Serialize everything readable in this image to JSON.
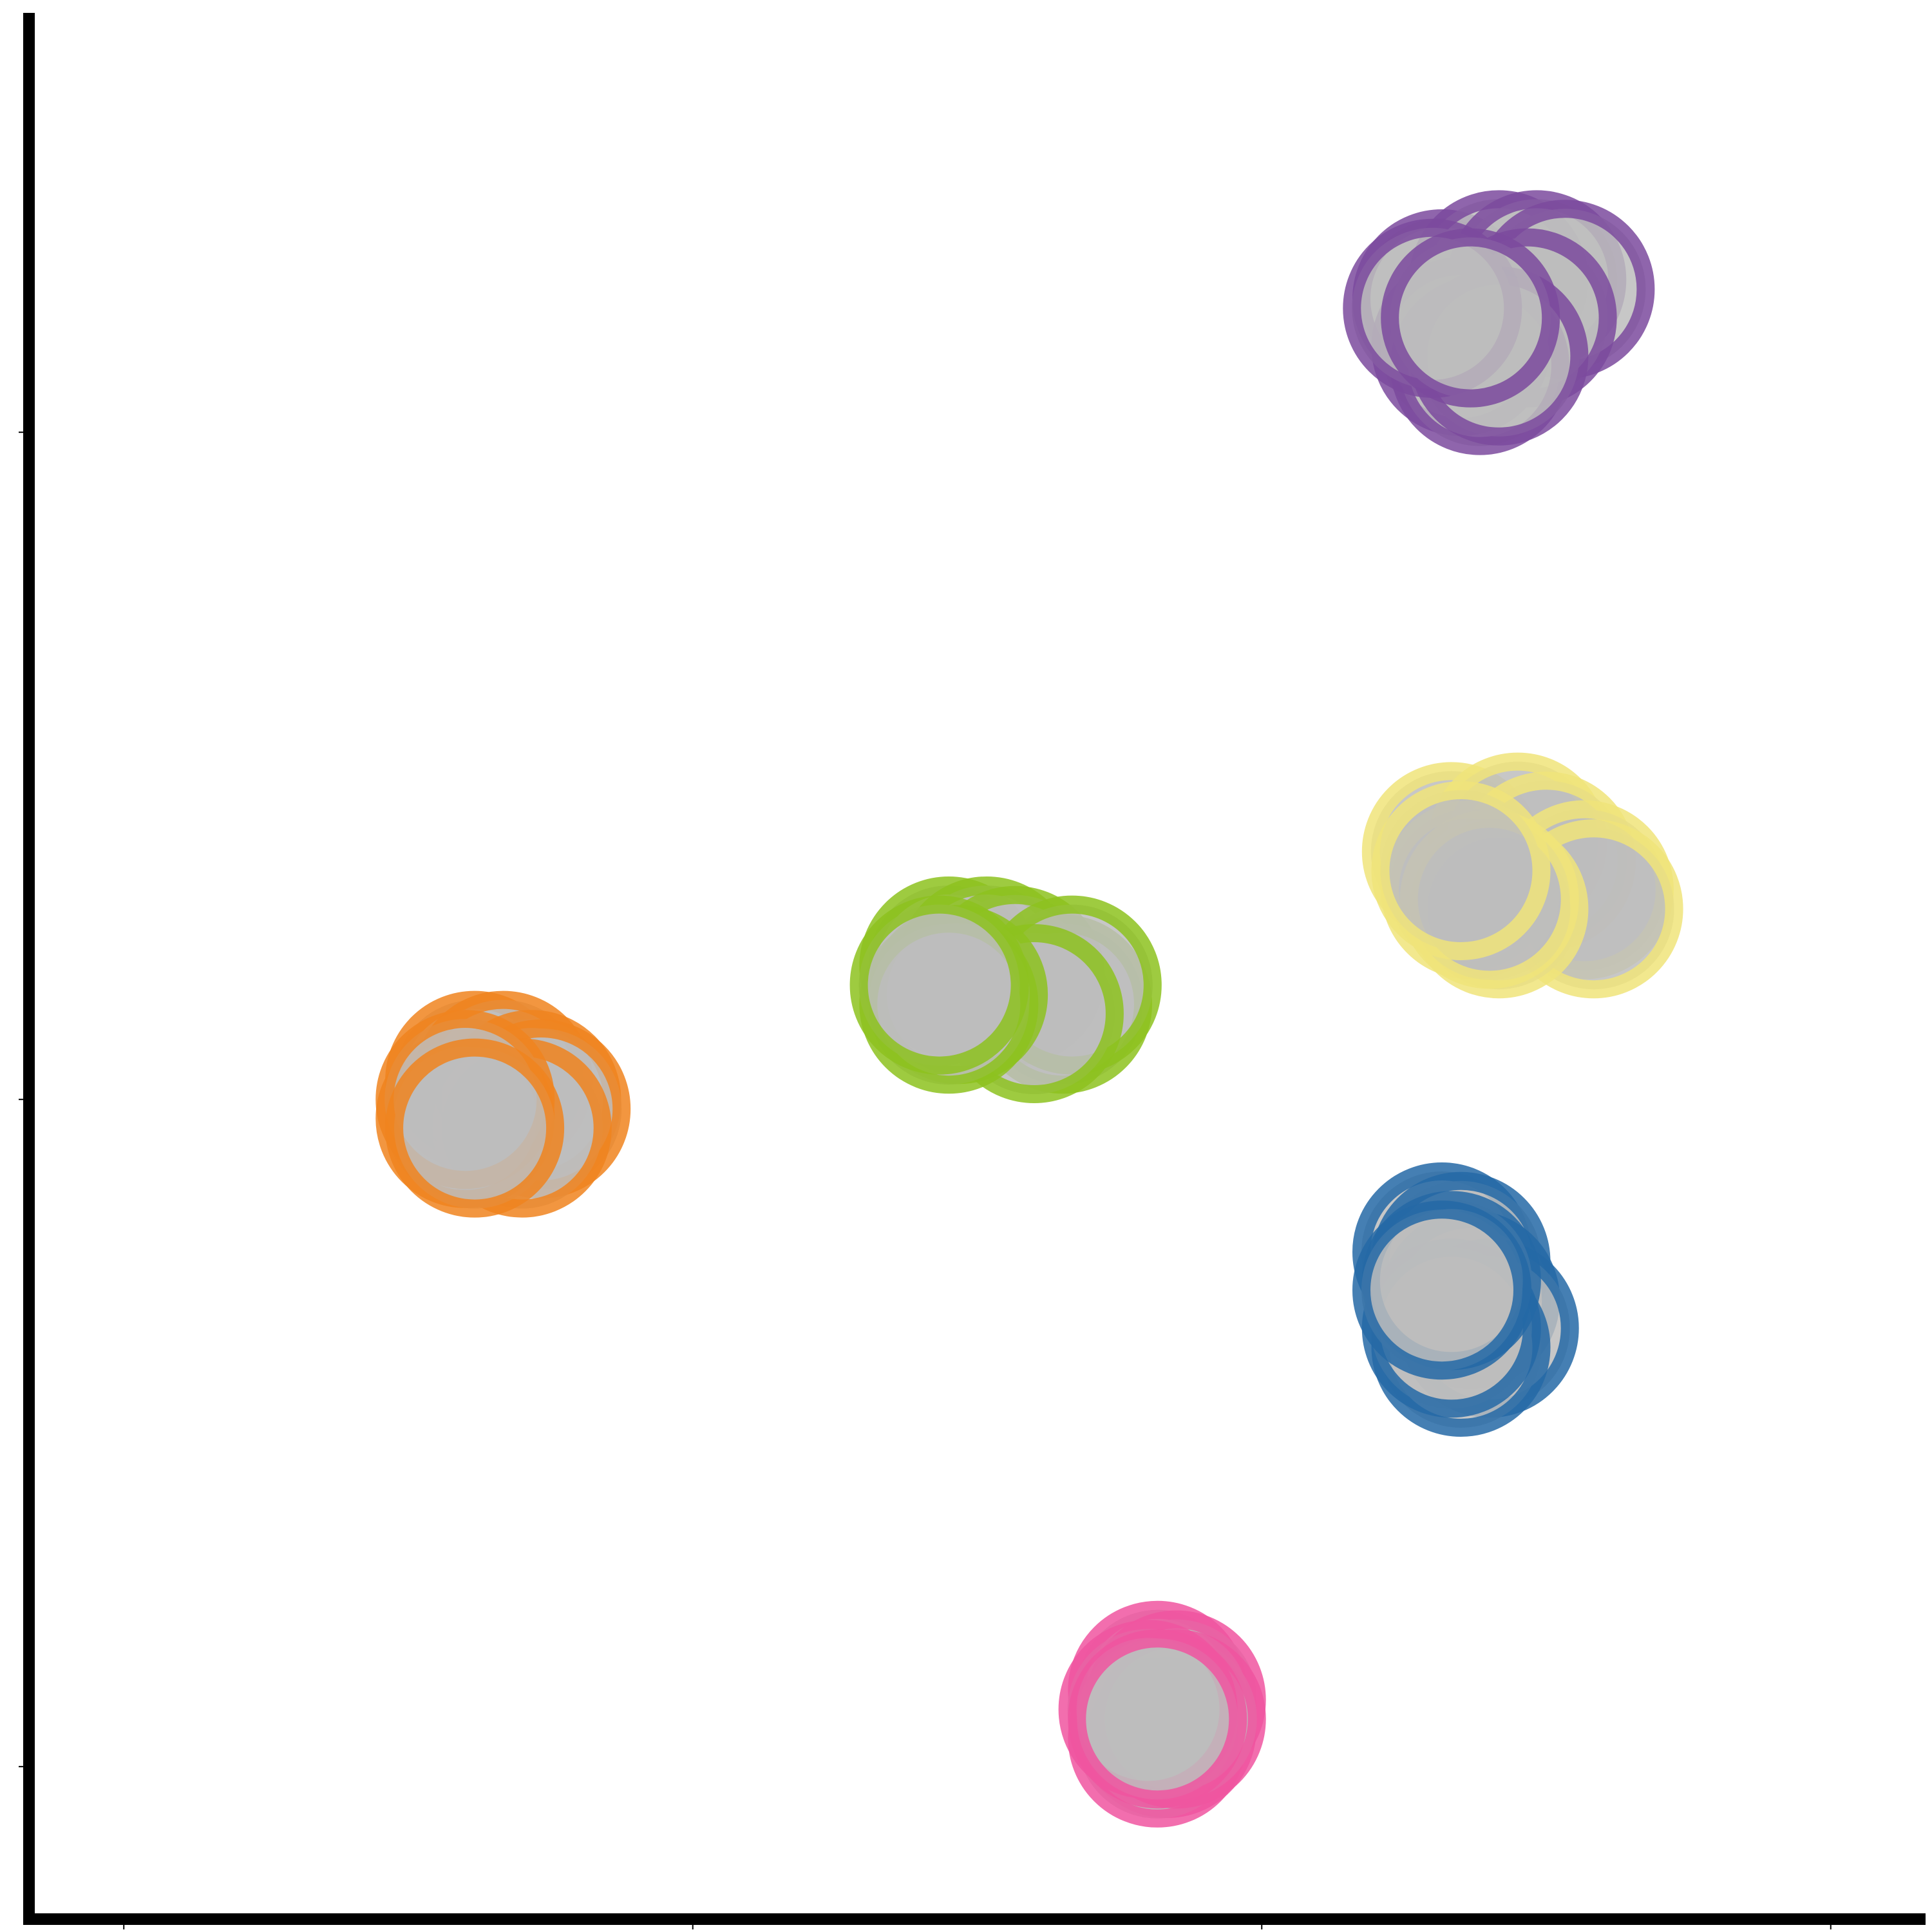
{
  "chart_data": {
    "type": "scatter",
    "title": "",
    "xlabel": "",
    "ylabel": "",
    "xlim": [
      0,
      10
    ],
    "ylim": [
      0,
      10
    ],
    "x_ticks": [
      0.5,
      3.5,
      6.5,
      9.5
    ],
    "y_ticks": [
      0.8,
      4.3,
      7.8
    ],
    "grid": false,
    "legend": "none",
    "marker_fill": "#bdbdbd",
    "series": [
      {
        "color": "#7b4a9e",
        "points": [
          [
            7.45,
            8.5
          ],
          [
            7.75,
            8.6
          ],
          [
            7.95,
            8.6
          ],
          [
            8.1,
            8.55
          ],
          [
            7.9,
            8.4
          ],
          [
            7.55,
            8.25
          ],
          [
            7.65,
            8.15
          ],
          [
            7.75,
            8.2
          ],
          [
            7.4,
            8.45
          ],
          [
            7.6,
            8.4
          ]
        ]
      },
      {
        "color": "#f0e47a",
        "points": [
          [
            7.5,
            5.6
          ],
          [
            7.85,
            5.65
          ],
          [
            8.0,
            5.55
          ],
          [
            8.2,
            5.4
          ],
          [
            8.25,
            5.3
          ],
          [
            7.6,
            5.4
          ],
          [
            7.75,
            5.3
          ],
          [
            7.7,
            5.35
          ],
          [
            7.55,
            5.5
          ]
        ]
      },
      {
        "color": "#8dc21f",
        "points": [
          [
            4.85,
            5.0
          ],
          [
            5.05,
            5.0
          ],
          [
            5.2,
            4.95
          ],
          [
            5.45,
            4.8
          ],
          [
            5.5,
            4.9
          ],
          [
            5.3,
            4.75
          ],
          [
            4.9,
            4.85
          ],
          [
            4.85,
            4.8
          ],
          [
            4.8,
            4.9
          ]
        ]
      },
      {
        "color": "#f0841f",
        "points": [
          [
            2.35,
            4.4
          ],
          [
            2.5,
            4.4
          ],
          [
            2.65,
            4.3
          ],
          [
            2.7,
            4.25
          ],
          [
            2.6,
            4.15
          ],
          [
            2.3,
            4.2
          ],
          [
            2.3,
            4.3
          ],
          [
            2.35,
            4.15
          ]
        ]
      },
      {
        "color": "#2469a6",
        "points": [
          [
            7.45,
            3.5
          ],
          [
            7.55,
            3.45
          ],
          [
            7.6,
            3.25
          ],
          [
            7.7,
            3.1
          ],
          [
            7.55,
            3.0
          ],
          [
            7.5,
            3.1
          ],
          [
            7.5,
            3.35
          ],
          [
            7.45,
            3.3
          ]
        ]
      },
      {
        "color": "#f055a0",
        "points": [
          [
            5.95,
            1.2
          ],
          [
            6.05,
            1.15
          ],
          [
            6.0,
            1.0
          ],
          [
            5.95,
            0.95
          ],
          [
            6.05,
            1.05
          ],
          [
            5.9,
            1.1
          ],
          [
            5.95,
            1.05
          ]
        ]
      }
    ]
  }
}
